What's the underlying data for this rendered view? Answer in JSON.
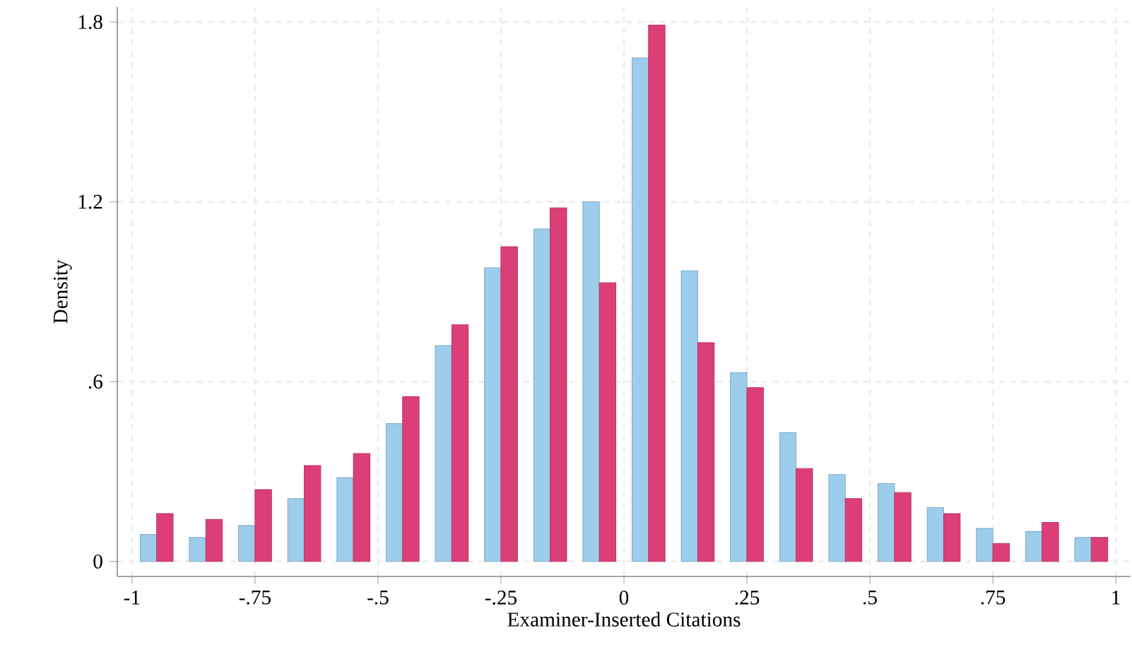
{
  "chart_data": {
    "type": "histogram",
    "xlabel": "Examiner-Inserted Citations",
    "ylabel": "Density",
    "bins": [
      -1,
      -0.9,
      -0.8,
      -0.7,
      -0.6,
      -0.5,
      -0.4,
      -0.3,
      -0.2,
      -0.1,
      0,
      0.1,
      0.2,
      0.3,
      0.4,
      0.5,
      0.6,
      0.7,
      0.8,
      0.9,
      1
    ],
    "series": [
      {
        "color": "#9dcdec",
        "values": [
          0.09,
          0.08,
          0.12,
          0.21,
          0.28,
          0.46,
          0.72,
          0.98,
          1.11,
          1.2,
          1.68,
          0.97,
          0.63,
          0.43,
          0.29,
          0.26,
          0.18,
          0.11,
          0.1,
          0.08
        ]
      },
      {
        "color": "#dc3f78",
        "values": [
          0.16,
          0.14,
          0.24,
          0.32,
          0.36,
          0.55,
          0.79,
          1.05,
          1.18,
          0.93,
          1.79,
          0.73,
          0.58,
          0.31,
          0.21,
          0.23,
          0.16,
          0.06,
          0.13,
          0.08
        ]
      }
    ],
    "xlim": [
      -1.03,
      1.03
    ],
    "ylim": [
      -0.05,
      1.85
    ],
    "xticks": [
      {
        "value": -1,
        "label": "-1"
      },
      {
        "value": -0.75,
        "label": "-.75"
      },
      {
        "value": -0.5,
        "label": "-.5"
      },
      {
        "value": -0.25,
        "label": "-.25"
      },
      0,
      {
        "value": 0.25,
        "label": ".25"
      },
      {
        "value": 0.5,
        "label": ".5"
      },
      {
        "value": 0.75,
        "label": ".75"
      },
      1
    ],
    "yticks": [
      0,
      {
        "value": 0.6,
        "label": ".6"
      },
      1.2,
      1.8
    ],
    "grid": true
  }
}
